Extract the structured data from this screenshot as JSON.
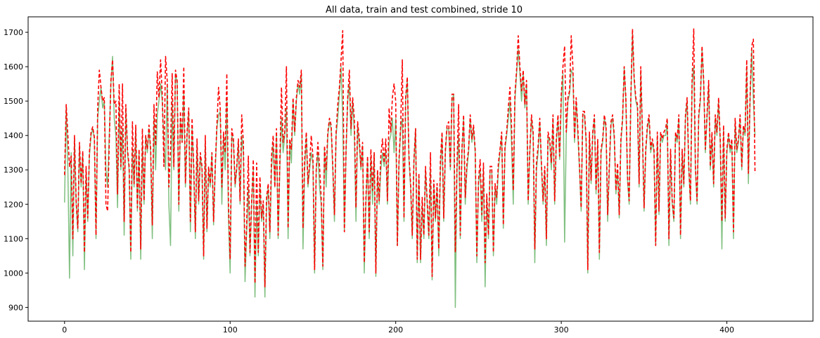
{
  "chart_data": {
    "type": "line",
    "title": "All data, train and test combined, stride 10",
    "xlabel": "",
    "ylabel": "",
    "xlim": [
      -22,
      452
    ],
    "ylim": [
      860,
      1745
    ],
    "xticks": [
      0,
      100,
      200,
      300,
      400
    ],
    "yticks": [
      900,
      1000,
      1100,
      1200,
      1300,
      1400,
      1500,
      1600,
      1700
    ],
    "grid": false,
    "legend": "none",
    "series": [
      {
        "color": "#7fbf7f",
        "style": "solid",
        "values": [
          1205,
          1480,
          1300,
          985,
          1350,
          1050,
          1390,
          1200,
          1120,
          1370,
          1250,
          1350,
          1010,
          1300,
          1150,
          1340,
          1400,
          1420,
          1390,
          1100,
          1450,
          1500,
          1540,
          1480,
          1500,
          1300,
          1250,
          1400,
          1550,
          1630,
          1450,
          1400,
          1190,
          1500,
          1300,
          1420,
          1110,
          1480,
          1350,
          1300,
          1040,
          1360,
          1250,
          1420,
          1180,
          1350,
          1040,
          1380,
          1200,
          1400,
          1350,
          1420,
          1350,
          1100,
          1450,
          1300,
          1460,
          1500,
          1550,
          1500,
          1380,
          1300,
          1550,
          1200,
          1080,
          1500,
          1300,
          1580,
          1550,
          1180,
          1450,
          1380,
          1520,
          1250,
          1400,
          1470,
          1120,
          1420,
          1300,
          1100,
          1380,
          1200,
          1340,
          1300,
          1040,
          1380,
          1120,
          1300,
          1250,
          1350,
          1140,
          1300,
          1420,
          1460,
          1470,
          1200,
          1400,
          1300,
          1500,
          1160,
          1000,
          1400,
          1380,
          1250,
          1300,
          1380,
          1200,
          1400,
          1350,
          975,
          1120,
          1250,
          1050,
          1200,
          1300,
          930,
          1200,
          1050,
          1250,
          1150,
          1200,
          930,
          1200,
          1250,
          1100,
          1300,
          1380,
          1250,
          1400,
          1100,
          1300,
          1450,
          1350,
          1400,
          1480,
          1100,
          1380,
          1320,
          1500,
          1400,
          1500,
          1550,
          1520,
          1580,
          1070,
          1300,
          1400,
          1250,
          1300,
          1350,
          1320,
          1000,
          1300,
          1350,
          1250,
          1200,
          1010,
          1360,
          1250,
          1400,
          1440,
          1420,
          1300,
          1150,
          1400,
          1450,
          1520,
          1600,
          1450,
          1120,
          1350,
          1500,
          1550,
          1400,
          1500,
          1410,
          1150,
          1430,
          1370,
          1300,
          1370,
          1000,
          1200,
          1330,
          1100,
          1340,
          1200,
          1350,
          990,
          1290,
          1200,
          1300,
          1350,
          1310,
          1360,
          1200,
          1380,
          1400,
          1450,
          1350,
          1450,
          1080,
          1320,
          1420,
          1450,
          1150,
          1500,
          1560,
          1330,
          1250,
          1100,
          1320,
          1420,
          1030,
          1280,
          1030,
          1200,
          1100,
          1300,
          1200,
          1100,
          1300,
          980,
          1260,
          1150,
          1250,
          1050,
          1300,
          1400,
          1150,
          1350,
          1420,
          1420,
          1300,
          1500,
          1520,
          900,
          1300,
          1400,
          1100,
          1350,
          1450,
          1200,
          1300,
          1350,
          1450,
          1380,
          1420,
          1350,
          1030,
          1260,
          1300,
          1150,
          1300,
          960,
          1220,
          1100,
          1300,
          1300,
          1050,
          1250,
          1200,
          1300,
          1350,
          1400,
          1130,
          1360,
          1400,
          1450,
          1500,
          1370,
          1200,
          1500,
          1580,
          1650,
          1580,
          1500,
          1580,
          1480,
          1550,
          1200,
          1350,
          1450,
          1400,
          1030,
          1300,
          1350,
          1440,
          1310,
          1200,
          1300,
          1080,
          1400,
          1380,
          1300,
          1450,
          1200,
          1380,
          1450,
          1330,
          1500,
          1580,
          1090,
          1400,
          1500,
          1520,
          1590,
          1580,
          1380,
          1500,
          1400,
          1300,
          1180,
          1460,
          1460,
          1380,
          1000,
          1400,
          1260,
          1400,
          1450,
          1230,
          1380,
          1040,
          1350,
          1380,
          1450,
          1420,
          1150,
          1300,
          1430,
          1450,
          1390,
          1230,
          1300,
          1160,
          1380,
          1440,
          1600,
          1500,
          1270,
          1200,
          1500,
          1700,
          1560,
          1500,
          1480,
          1250,
          1580,
          1400,
          1180,
          1350,
          1420,
          1450,
          1350,
          1380,
          1350,
          1080,
          1400,
          1170,
          1400,
          1380,
          1400,
          1400,
          1440,
          1080,
          1350,
          1200,
          1150,
          1400,
          1380,
          1450,
          1100,
          1350,
          1250,
          1450,
          1500,
          1300,
          1200,
          1550,
          1600,
          1300,
          1200,
          1450,
          1500,
          1650,
          1550,
          1350,
          1450,
          1550,
          1300,
          1400,
          1250,
          1450,
          1400,
          1500,
          1380,
          1070,
          1420,
          1150,
          1350,
          1400,
          1350,
          1380,
          1100,
          1440,
          1350,
          1380,
          1450,
          1300,
          1420,
          1400,
          1600,
          1260,
          1500,
          1650,
          1500,
          1400
        ]
      },
      {
        "color": "#ff0000",
        "style": "dashed",
        "values": [
          1285,
          1490,
          1400,
          1310,
          1340,
          1100,
          1400,
          1210,
          1130,
          1380,
          1260,
          1355,
          1060,
          1310,
          1160,
          1350,
          1410,
          1425,
          1395,
          1110,
          1480,
          1590,
          1540,
          1500,
          1510,
          1200,
          1180,
          1380,
          1560,
          1620,
          1490,
          1500,
          1230,
          1550,
          1310,
          1550,
          1150,
          1490,
          1360,
          1310,
          1060,
          1440,
          1260,
          1430,
          1190,
          1360,
          1070,
          1420,
          1210,
          1400,
          1360,
          1430,
          1360,
          1140,
          1490,
          1370,
          1585,
          1510,
          1620,
          1520,
          1310,
          1630,
          1560,
          1250,
          1360,
          1580,
          1310,
          1590,
          1560,
          1200,
          1470,
          1380,
          1600,
          1260,
          1410,
          1480,
          1150,
          1450,
          1310,
          1120,
          1390,
          1210,
          1350,
          1310,
          1050,
          1400,
          1130,
          1310,
          1260,
          1350,
          1150,
          1310,
          1430,
          1540,
          1480,
          1250,
          1410,
          1350,
          1580,
          1200,
          1040,
          1420,
          1390,
          1260,
          1310,
          1390,
          1210,
          1460,
          1380,
          1020,
          1140,
          1340,
          1060,
          1210,
          1330,
          970,
          1320,
          1060,
          1280,
          1160,
          1210,
          960,
          1220,
          1260,
          1120,
          1340,
          1400,
          1250,
          1420,
          1110,
          1320,
          1540,
          1380,
          1410,
          1600,
          1130,
          1390,
          1360,
          1510,
          1410,
          1510,
          1560,
          1540,
          1590,
          1130,
          1330,
          1410,
          1260,
          1320,
          1400,
          1340,
          1010,
          1300,
          1380,
          1310,
          1220,
          1020,
          1370,
          1300,
          1410,
          1450,
          1430,
          1310,
          1170,
          1410,
          1490,
          1540,
          1620,
          1705,
          1120,
          1360,
          1510,
          1590,
          1420,
          1510,
          1450,
          1190,
          1440,
          1390,
          1310,
          1380,
          1030,
          1220,
          1340,
          1120,
          1360,
          1240,
          1350,
          1000,
          1300,
          1210,
          1340,
          1390,
          1320,
          1390,
          1210,
          1480,
          1410,
          1510,
          1550,
          1500,
          1080,
          1330,
          1430,
          1620,
          1160,
          1510,
          1570,
          1340,
          1260,
          1110,
          1330,
          1420,
          1040,
          1290,
          1040,
          1220,
          1110,
          1310,
          1210,
          1110,
          1350,
          990,
          1270,
          1160,
          1260,
          1070,
          1330,
          1410,
          1160,
          1360,
          1430,
          1440,
          1310,
          1520,
          1520,
          1060,
          1310,
          1490,
          1110,
          1360,
          1460,
          1220,
          1320,
          1360,
          1460,
          1390,
          1430,
          1360,
          1050,
          1270,
          1330,
          1170,
          1320,
          1030,
          1230,
          1110,
          1310,
          1310,
          1060,
          1260,
          1220,
          1320,
          1360,
          1410,
          1140,
          1370,
          1410,
          1480,
          1540,
          1420,
          1240,
          1520,
          1590,
          1690,
          1600,
          1530,
          1590,
          1490,
          1560,
          1210,
          1360,
          1460,
          1410,
          1070,
          1320,
          1370,
          1450,
          1320,
          1210,
          1310,
          1100,
          1410,
          1390,
          1320,
          1460,
          1210,
          1390,
          1460,
          1340,
          1520,
          1600,
          1660,
          1410,
          1510,
          1530,
          1690,
          1600,
          1390,
          1510,
          1420,
          1310,
          1190,
          1470,
          1470,
          1390,
          1010,
          1410,
          1270,
          1410,
          1460,
          1240,
          1390,
          1060,
          1360,
          1390,
          1460,
          1430,
          1170,
          1310,
          1440,
          1460,
          1400,
          1240,
          1320,
          1170,
          1390,
          1450,
          1600,
          1510,
          1280,
          1210,
          1510,
          1710,
          1570,
          1510,
          1490,
          1260,
          1600,
          1410,
          1190,
          1360,
          1430,
          1460,
          1360,
          1390,
          1360,
          1080,
          1410,
          1180,
          1410,
          1390,
          1410,
          1420,
          1450,
          1100,
          1360,
          1210,
          1160,
          1410,
          1390,
          1460,
          1110,
          1360,
          1260,
          1460,
          1510,
          1310,
          1210,
          1560,
          1710,
          1310,
          1210,
          1460,
          1510,
          1660,
          1560,
          1360,
          1460,
          1560,
          1310,
          1410,
          1260,
          1460,
          1410,
          1510,
          1390,
          1150,
          1430,
          1160,
          1360,
          1410,
          1360,
          1390,
          1120,
          1450,
          1360,
          1390,
          1460,
          1310,
          1430,
          1410,
          1620,
          1290,
          1510,
          1660,
          1680,
          1290
        ]
      }
    ]
  }
}
